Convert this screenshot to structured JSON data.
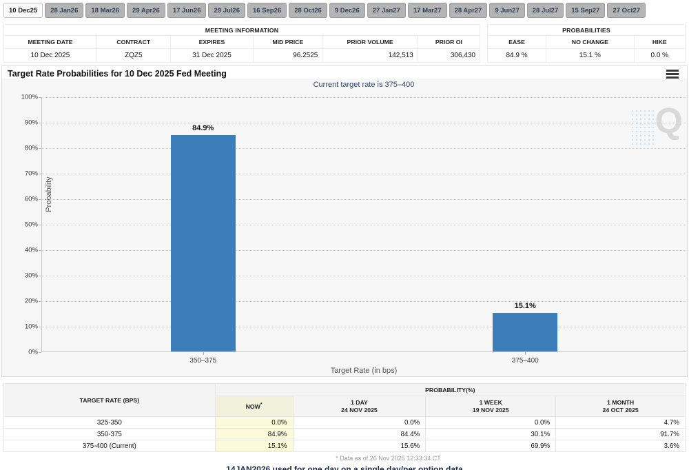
{
  "tabs": {
    "items": [
      {
        "label": "10 Dec25",
        "selected": true
      },
      {
        "label": "28 Jan26",
        "selected": false
      },
      {
        "label": "18 Mar26",
        "selected": false
      },
      {
        "label": "29 Apr26",
        "selected": false
      },
      {
        "label": "17 Jun26",
        "selected": false
      },
      {
        "label": "29 Jul26",
        "selected": false
      },
      {
        "label": "16 Sep26",
        "selected": false
      },
      {
        "label": "28 Oct26",
        "selected": false
      },
      {
        "label": "9 Dec26",
        "selected": false
      },
      {
        "label": "27 Jan27",
        "selected": false
      },
      {
        "label": "17 Mar27",
        "selected": false
      },
      {
        "label": "28 Apr27",
        "selected": false
      },
      {
        "label": "9 Jun27",
        "selected": false
      },
      {
        "label": "28 Jul27",
        "selected": false
      },
      {
        "label": "15 Sep27",
        "selected": false
      },
      {
        "label": "27 Oct27",
        "selected": false
      }
    ]
  },
  "meeting_info": {
    "title": "MEETING INFORMATION",
    "columns": [
      "MEETING DATE",
      "CONTRACT",
      "EXPIRES",
      "MID PRICE",
      "PRIOR VOLUME",
      "PRIOR OI"
    ],
    "values": [
      "10 Dec 2025",
      "ZQZ5",
      "31 Dec 2025",
      "96.2525",
      "142,513",
      "306,430"
    ]
  },
  "probabilities_summary": {
    "title": "PROBABILITIES",
    "columns": [
      "EASE",
      "NO CHANGE",
      "HIKE"
    ],
    "values": [
      "84.9 %",
      "15.1 %",
      "0.0 %"
    ]
  },
  "chart": {
    "title": "Target Rate Probabilities for 10 Dec 2025 Fed Meeting",
    "subtitle": "Current target rate is 375–400",
    "watermark": "Q"
  },
  "chart_data": {
    "type": "bar",
    "title": "Target Rate Probabilities for 10 Dec 2025 Fed Meeting",
    "subtitle": "Current target rate is 375–400",
    "categories": [
      "350–375",
      "375–400"
    ],
    "values": [
      84.9,
      15.1
    ],
    "value_labels": [
      "84.9%",
      "15.1%"
    ],
    "xlabel": "Target Rate (in bps)",
    "ylabel": "Probability",
    "ylim": [
      0,
      100
    ],
    "ytick_step": 10,
    "ytick_suffix": "%",
    "grid": true,
    "legend": "none",
    "bar_color": "#3d7eba"
  },
  "history_table": {
    "col1_header": "TARGET RATE (BPS)",
    "group_header": "PROBABILITY(%)",
    "sub_headers": [
      {
        "label": "NOW",
        "sup": "*",
        "date": ""
      },
      {
        "label": "1 DAY",
        "sup": "",
        "date": "24 NOV 2025"
      },
      {
        "label": "1 WEEK",
        "sup": "",
        "date": "19 NOV 2025"
      },
      {
        "label": "1 MONTH",
        "sup": "",
        "date": "24 OCT 2025"
      }
    ],
    "rows": [
      {
        "label": "325-350",
        "values": [
          "0.0%",
          "0.0%",
          "0.0%",
          "4.7%"
        ]
      },
      {
        "label": "350-375",
        "values": [
          "84.9%",
          "84.4%",
          "30.1%",
          "91.7%"
        ]
      },
      {
        "label": "375-400 (Current)",
        "values": [
          "15.1%",
          "15.6%",
          "69.9%",
          "3.6%"
        ]
      }
    ],
    "footnote": "* Data as of 26 Nov 2025 12:33:34 CT"
  },
  "bottom_clipped_text": "14JAN2026 used for one day on a single day/per option data",
  "colors": {
    "bar": "#3d7eba",
    "now_column": "#fbfbdb",
    "tab_inactive": "#b4b4b4",
    "subtitle_text": "#33486b",
    "plot_background": "#f7f7f7"
  }
}
